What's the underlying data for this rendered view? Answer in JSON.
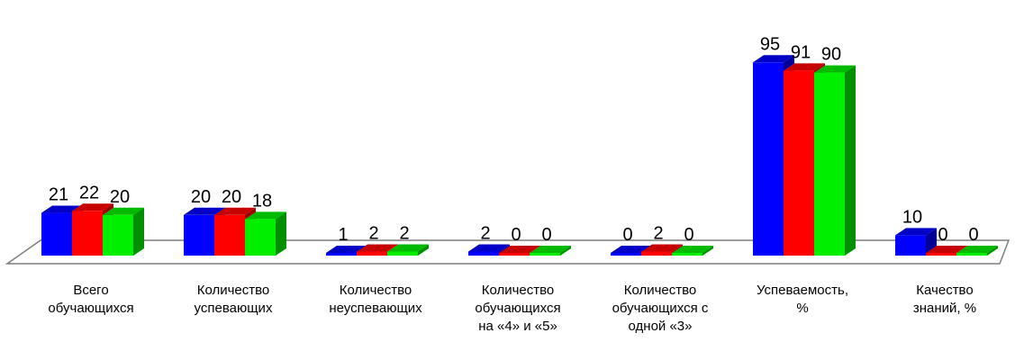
{
  "chart_data": {
    "type": "bar",
    "categories": [
      [
        "Всего",
        "обучающихся"
      ],
      [
        "Количество",
        "успевающих"
      ],
      [
        "Количество",
        "неуспевающих"
      ],
      [
        "Количество",
        "обучающихся",
        "на  «4» и «5»"
      ],
      [
        "Количество",
        "обучающихся с",
        "одной «3»"
      ],
      [
        "Успеваемость,",
        "%"
      ],
      [
        "Качество",
        "знаний, %"
      ]
    ],
    "series": [
      {
        "color": "#0000ff",
        "values": [
          21,
          20,
          1,
          2,
          0,
          95,
          10
        ]
      },
      {
        "color": "#ff0000",
        "values": [
          22,
          20,
          2,
          0,
          2,
          91,
          0
        ]
      },
      {
        "color": "#00ee00",
        "values": [
          20,
          18,
          2,
          0,
          0,
          90,
          0
        ]
      }
    ],
    "ylim": [
      0,
      100
    ],
    "grid": false,
    "legend": "none",
    "style": "3d-clustered-column"
  }
}
